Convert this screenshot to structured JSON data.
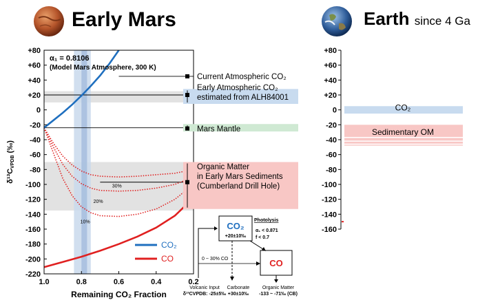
{
  "left_title": "Early Mars",
  "right_title": "Earth",
  "right_subtitle": "since 4 Ga",
  "chart_data": [
    {
      "type": "line",
      "name": "early-mars-fractionation",
      "xlabel": "Remaining CO₂ Fraction",
      "ylabel": "δ¹³C",
      "ylabel_sub": "VPDB",
      "ylabel_unit": "(‰)",
      "xlim": [
        1.0,
        0.2
      ],
      "ylim": [
        -220,
        80
      ],
      "xticks": [
        1.0,
        0.8,
        0.6,
        0.4,
        0.2
      ],
      "xtick_labels": [
        "1.0",
        "0.8",
        "0.6",
        "0.4",
        "0.2"
      ],
      "yticks": [
        80,
        60,
        40,
        20,
        0,
        -20,
        -40,
        -60,
        -80,
        -100,
        -120,
        -140,
        -160,
        -180,
        -200,
        -220
      ],
      "ytick_labels": [
        "+80",
        "+60",
        "+40",
        "+20",
        "0",
        "-20",
        "-40",
        "-60",
        "-80",
        "-100",
        "-120",
        "-140",
        "-160",
        "-180",
        "-200",
        "-220"
      ],
      "annotation_line1": "α₁ = 0.8106",
      "annotation_line2": "(Model Mars Atmosphere, 300 K)",
      "series": [
        {
          "name": "CO₂",
          "color": "#1f6fbf",
          "x": [
            1.0,
            0.95,
            0.9,
            0.85,
            0.8,
            0.75,
            0.7,
            0.65,
            0.6
          ],
          "values": [
            -24,
            -14,
            -4,
            7,
            19,
            32,
            46,
            62,
            80
          ]
        },
        {
          "name": "CO",
          "color": "#e02020",
          "x": [
            1.0,
            0.9,
            0.8,
            0.7,
            0.6,
            0.5,
            0.4,
            0.3,
            0.2
          ],
          "values": [
            -211,
            -204,
            -197,
            -189,
            -180,
            -170,
            -158,
            -142,
            -118
          ]
        }
      ],
      "dotted_series": [
        {
          "name": "30%",
          "x": [
            1.0,
            0.95,
            0.9,
            0.85,
            0.8,
            0.75,
            0.7,
            0.6,
            0.5,
            0.4,
            0.3,
            0.2
          ],
          "values": [
            -24,
            -45,
            -62,
            -74,
            -82,
            -87,
            -89,
            -90,
            -89,
            -87,
            -85,
            -80
          ]
        },
        {
          "name": "20%",
          "x": [
            1.0,
            0.95,
            0.9,
            0.85,
            0.8,
            0.75,
            0.7,
            0.6,
            0.5,
            0.4,
            0.3,
            0.2
          ],
          "values": [
            -24,
            -50,
            -73,
            -89,
            -99,
            -105,
            -108,
            -109,
            -108,
            -105,
            -100,
            -90
          ]
        },
        {
          "name": "10%",
          "x": [
            1.0,
            0.95,
            0.9,
            0.85,
            0.8,
            0.75,
            0.7,
            0.6,
            0.5,
            0.4,
            0.3,
            0.2
          ],
          "values": [
            -24,
            -58,
            -92,
            -115,
            -130,
            -138,
            -142,
            -143,
            -140,
            -133,
            -120,
            -100
          ]
        }
      ],
      "dotted_color": "#e02020",
      "hlines": [
        45,
        20,
        -24,
        -97
      ],
      "hband_atmospheric": [
        10,
        25
      ],
      "hband_organic": [
        -135,
        -70
      ],
      "vband_light": [
        0.84,
        0.75
      ],
      "vband_dark": [
        0.8,
        0.77
      ],
      "legend": [
        {
          "label": "CO₂",
          "color": "#1f6fbf"
        },
        {
          "label": "CO",
          "color": "#e02020"
        }
      ],
      "side_labels": [
        {
          "text": "Current Atmospheric CO₂",
          "y": 45,
          "band": null,
          "color": "#ffffff"
        },
        {
          "text": "Early Atmospheric CO₂",
          "text2": "estimated from ALH84001",
          "y": 20,
          "band": [
            8,
            28
          ],
          "color": "#c8dbef"
        },
        {
          "text": "Mars Mantle",
          "y": -25,
          "band": [
            -29,
            -19
          ],
          "color": "#cfe9d3"
        },
        {
          "text": "Organic Matter",
          "text2": "in Early Mars Sediments",
          "text3": "(Cumberland Drill Hole)",
          "y": -97,
          "band": [
            -133,
            -70
          ],
          "color": "#f8c7c5"
        }
      ]
    },
    {
      "type": "bar",
      "name": "earth-since-4ga",
      "ylim": [
        -160,
        80
      ],
      "yticks": [
        80,
        60,
        40,
        20,
        0,
        -20,
        -40,
        -60,
        -80,
        -100,
        -120,
        -140,
        -160
      ],
      "ytick_labels": [
        "+80",
        "+60",
        "+40",
        "+20",
        "0",
        "-20",
        "-40",
        "-60",
        "-80",
        "-100",
        "-120",
        "-140",
        "-160"
      ],
      "bands": [
        {
          "label": "CO₂",
          "range": [
            -5,
            5
          ],
          "color": "#c8dbef"
        },
        {
          "label": "Sedimentary OM",
          "range": [
            -48,
            -20
          ],
          "color": "#f8c7c5"
        }
      ]
    }
  ],
  "schematic": {
    "co2_label": "CO₂",
    "co2_value": "+20±10‰",
    "co_label": "CO",
    "photolysis_title": "Photolysis",
    "photolysis_alpha": "α₁ < 0.871",
    "photolysis_f": "f < 0.7",
    "co_fraction": "0 ~ 30% CO",
    "volcanic_label": "Volcanic Input",
    "volcanic_value": "δ¹³CVPDB: -25±5‰",
    "carbonate_label": "Carbonate",
    "carbonate_value": "+30±10‰",
    "organic_label": "Organic Matter",
    "organic_value": "-133 ~ -71‰ (CB)"
  }
}
